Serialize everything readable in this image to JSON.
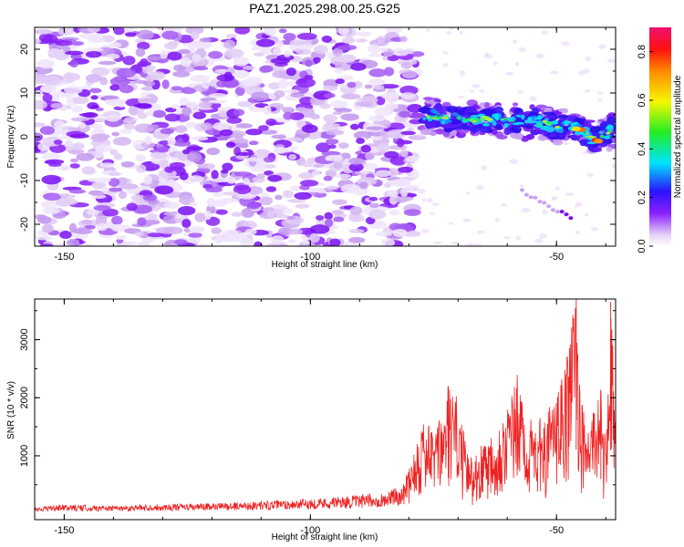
{
  "title": "PAZ1.2025.298.00.25.G25",
  "chart_data": [
    {
      "type": "heatmap",
      "panel": "spectrogram",
      "xlabel": "Height of straight line (km)",
      "ylabel": "Frequency (Hz)",
      "xlim": [
        -156,
        -38
      ],
      "ylim": [
        -25,
        25
      ],
      "xticks": [
        -150,
        -100,
        -50
      ],
      "yticks": [
        -20,
        -10,
        0,
        10,
        20
      ],
      "colorbar": {
        "label": "Normalized spectral amplitude",
        "range": [
          0,
          0.9
        ],
        "ticks": [
          "0.0",
          "0.2",
          "0.4",
          "0.6",
          "0.8"
        ]
      },
      "ridge": {
        "description_points_height_km": [
          -77,
          -70,
          -65,
          -60,
          -55,
          -50,
          -46,
          -42,
          -38
        ],
        "description_points_freq_hz": [
          5,
          4,
          4,
          3.5,
          3.5,
          2.5,
          2,
          -1,
          2
        ]
      }
    },
    {
      "type": "line",
      "panel": "snr",
      "xlabel": "Height of straight line (km)",
      "ylabel": "SNR (10 * v/v)",
      "xlim": [
        -156,
        -38
      ],
      "ylim": [
        -100,
        3700
      ],
      "xticks": [
        -150,
        -100,
        -50
      ],
      "yticks": [
        1000,
        2000,
        3000
      ],
      "series": [
        {
          "name": "SNR",
          "color": "#ee2222",
          "x": [
            -156,
            -150,
            -140,
            -130,
            -120,
            -110,
            -100,
            -90,
            -85,
            -81,
            -79,
            -77,
            -75,
            -73,
            -72,
            -70,
            -68,
            -66,
            -64,
            -62,
            -60,
            -58,
            -56,
            -54,
            -52,
            -50,
            -48,
            -46,
            -45,
            -44,
            -42,
            -41,
            -40,
            -39,
            -38
          ],
          "y": [
            100,
            120,
            110,
            130,
            140,
            170,
            200,
            250,
            280,
            400,
            1100,
            1500,
            1300,
            1600,
            2050,
            1800,
            900,
            1000,
            1250,
            1400,
            1700,
            2200,
            1500,
            1450,
            1600,
            1850,
            2400,
            3700,
            1900,
            1300,
            1900,
            2000,
            1100,
            3650,
            1500
          ]
        }
      ]
    }
  ]
}
